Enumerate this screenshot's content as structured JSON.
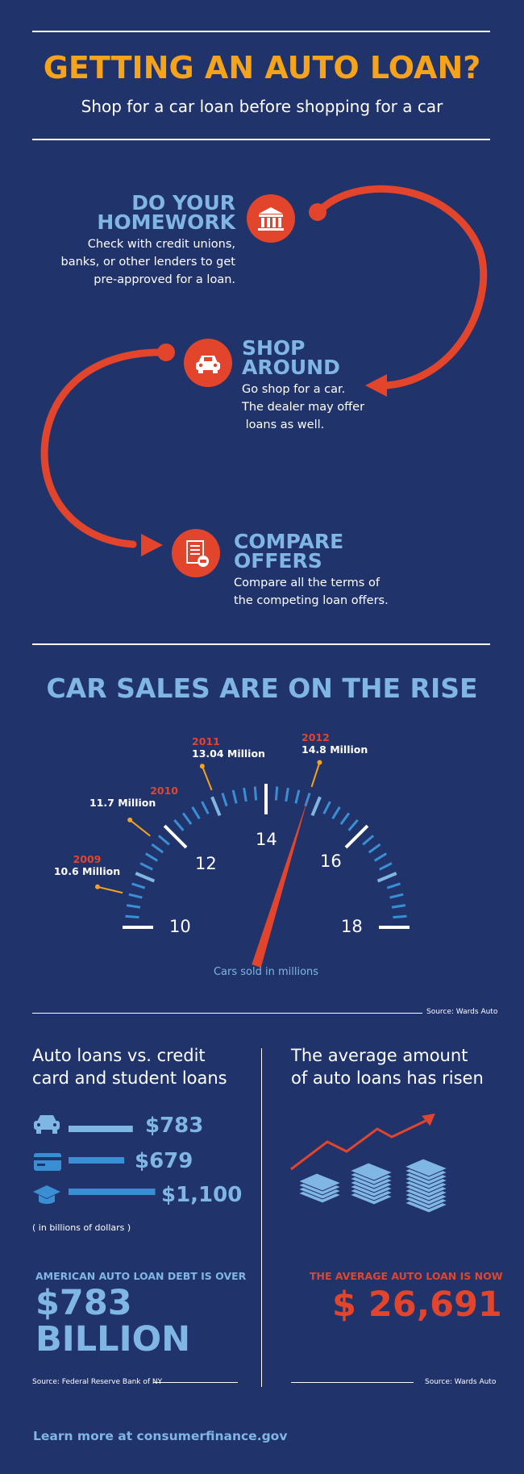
{
  "header": {
    "title": "GETTING AN AUTO LOAN?",
    "subtitle": "Shop for a car loan before shopping for a car"
  },
  "steps": [
    {
      "title_line1": "DO YOUR",
      "title_line2": "HOMEWORK",
      "desc_line1": "Check with credit unions,",
      "desc_line2": "banks, or other lenders to get",
      "desc_line3": "pre-approved for a loan.",
      "icon": "bank-icon"
    },
    {
      "title_line1": "SHOP",
      "title_line2": "AROUND",
      "desc_line1": "Go shop for a car.",
      "desc_line2": "The dealer may offer",
      "desc_line3": " loans as well.",
      "icon": "car-icon"
    },
    {
      "title_line1": "COMPARE",
      "title_line2": "OFFERS",
      "desc_line1": "Compare all the terms of",
      "desc_line2": "the competing loan offers.",
      "icon": "document-icon"
    }
  ],
  "sales": {
    "title": "CAR SALES ARE ON THE RISE",
    "caption": "Cars sold in millions",
    "source": "Source: Wards Auto",
    "gauge_numbers": [
      "10",
      "12",
      "14",
      "16",
      "18"
    ],
    "labels": [
      {
        "year": "2009",
        "value": "10.6 Million"
      },
      {
        "year": "2010",
        "value": "11.7 Million"
      },
      {
        "year": "2011",
        "value": "13.04 Million"
      },
      {
        "year": "2012",
        "value": "14.8 Million"
      }
    ]
  },
  "chart_data": {
    "type": "gauge",
    "title": "CAR SALES ARE ON THE RISE",
    "xlabel": "Cars sold in millions",
    "range": [
      10,
      18
    ],
    "ticks": [
      10,
      12,
      14,
      16,
      18
    ],
    "categories": [
      "2009",
      "2010",
      "2011",
      "2012"
    ],
    "values": [
      10.6,
      11.7,
      13.04,
      14.8
    ],
    "needle_value": 14.8
  },
  "loans": {
    "left_heading_line1": "Auto loans vs. credit",
    "left_heading_line2": "card and student loans",
    "bars": [
      {
        "icon": "car-icon",
        "amount": "$783",
        "value": 783
      },
      {
        "icon": "credit-card-icon",
        "amount": "$679",
        "value": 679
      },
      {
        "icon": "graduation-cap-icon",
        "amount": "$1,100",
        "value": 1100
      }
    ],
    "units_note": "( in billions of dollars )",
    "debt_label": "AMERICAN AUTO LOAN DEBT IS OVER",
    "debt_line1": "$783",
    "debt_line2": "BILLION",
    "left_source": "Source: Federal Reserve Bank of NY",
    "right_heading_line1": "The average amount",
    "right_heading_line2": "of auto loans has risen",
    "avg_label": "THE AVERAGE AUTO LOAN IS NOW",
    "avg_value": "$ 26,691",
    "right_source": "Source: Wards Auto"
  },
  "footer": {
    "link": "Learn more at consumerfinance.gov"
  },
  "colors": {
    "background": "#21336b",
    "accent_orange": "#f5a31a",
    "accent_red": "#e2452b",
    "light_blue": "#7fb6e4",
    "mid_blue": "#3a8fd4"
  }
}
